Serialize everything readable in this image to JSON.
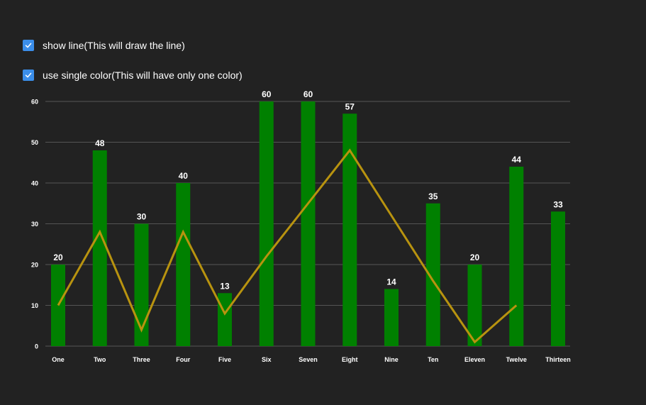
{
  "controls": {
    "show_line": {
      "label": "show line(This will draw the line)",
      "checked": true
    },
    "single_color": {
      "label": "use single color(This will have only one color)",
      "checked": true
    }
  },
  "colors": {
    "background": "#222222",
    "bar": "#008000",
    "line": "#b8930f",
    "grid": "#555555",
    "text": "#ffffff",
    "checkbox": "#3b8eea"
  },
  "chart_data": {
    "type": "bar",
    "categories": [
      "One",
      "Two",
      "Three",
      "Four",
      "Five",
      "Six",
      "Seven",
      "Eight",
      "Nine",
      "Ten",
      "Eleven",
      "Twelve",
      "Thirteen"
    ],
    "series": [
      {
        "type": "bar",
        "values": [
          20,
          48,
          30,
          40,
          13,
          60,
          60,
          57,
          14,
          35,
          20,
          44,
          33
        ],
        "data_labels": true
      },
      {
        "type": "line",
        "values": [
          10,
          28,
          4,
          28,
          8,
          22,
          35,
          48,
          32,
          16,
          1,
          10,
          null
        ]
      }
    ],
    "title": "",
    "xlabel": "",
    "ylabel": "",
    "ylim": [
      0,
      60
    ],
    "yticks": [
      0,
      10,
      20,
      30,
      40,
      50,
      60
    ],
    "grid": true
  }
}
